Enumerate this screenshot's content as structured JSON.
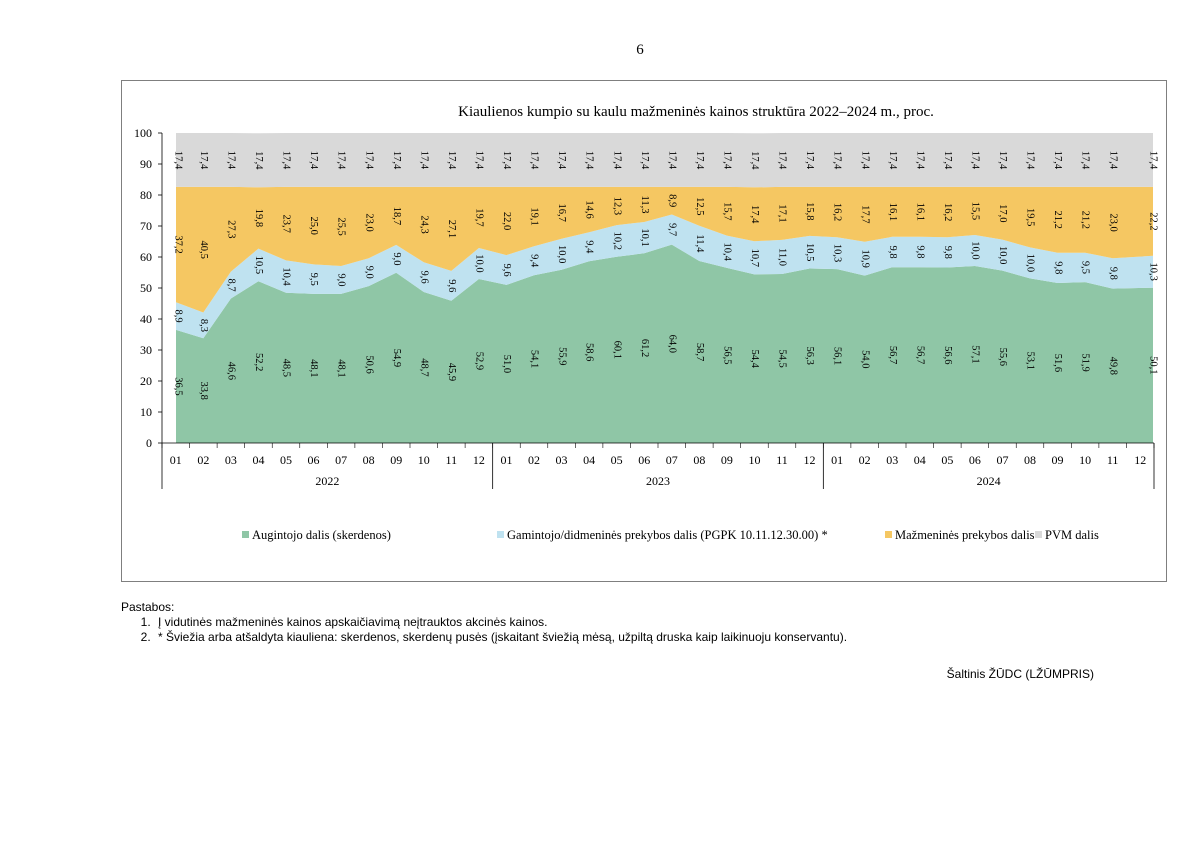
{
  "page_number": "6",
  "notes": {
    "heading": "Pastabos:",
    "items": [
      "Į vidutinės mažmeninės kainos apskaičiavimą neįtrauktos akcinės kainos.",
      "* Šviežia arba atšaldyta kiauliena: skerdenos, skerdenų pusės (įskaitant šviežią mėsą, užpiltą druska kaip laikinuoju konservantu)."
    ]
  },
  "source": "Šaltinis ŽŪDC (LŽŪMPRIS)",
  "chart_data": {
    "type": "area",
    "stacked": true,
    "title": "Kiaulienos kumpio su kaulu mažmeninės kainos struktūra 2022–2024 m., proc.",
    "ylim": [
      0,
      100
    ],
    "yticks": [
      0,
      10,
      20,
      30,
      40,
      50,
      60,
      70,
      80,
      90,
      100
    ],
    "categories": [
      "01",
      "02",
      "03",
      "04",
      "05",
      "06",
      "07",
      "08",
      "09",
      "10",
      "11",
      "12",
      "01",
      "02",
      "03",
      "04",
      "05",
      "06",
      "07",
      "08",
      "09",
      "10",
      "11",
      "12",
      "01",
      "02",
      "03",
      "04",
      "05",
      "06",
      "07",
      "08",
      "09",
      "10",
      "11",
      "12"
    ],
    "years": [
      "2022",
      "2023",
      "2024"
    ],
    "legend_position": "bottom",
    "series": [
      {
        "name": "Augintojo dalis (skerdenos)",
        "color": "#8fc6a6",
        "values": [
          36.5,
          33.8,
          46.6,
          52.2,
          48.5,
          48.1,
          48.1,
          50.6,
          54.9,
          48.7,
          45.9,
          52.9,
          51.0,
          54.1,
          55.9,
          58.6,
          60.1,
          61.2,
          64.0,
          58.7,
          56.5,
          54.4,
          54.5,
          56.3,
          56.1,
          54.0,
          56.7,
          56.7,
          56.6,
          57.1,
          55.6,
          53.1,
          51.6,
          51.9,
          49.8,
          50.1
        ],
        "labels": [
          "36,5",
          "33,8",
          "46,6",
          "52,2",
          "48,5",
          "48,1",
          "48,1",
          "50,6",
          "54,9",
          "48,7",
          "45,9",
          "52,9",
          "51,0",
          "54,1",
          "55,9",
          "58,6",
          "60,1",
          "61,2",
          "64,0",
          "58,7",
          "56,5",
          "54,4",
          "54,5",
          "56,3",
          "56,1",
          "54,0",
          "56,7",
          "56,7",
          "56,6",
          "57,1",
          "55,6",
          "53,1",
          "51,6",
          "51,9",
          "49,8",
          "50,1"
        ]
      },
      {
        "name": "Gamintojo/didmeninės prekybos dalis (PGPK 10.11.12.30.00) *",
        "color": "#bfe2f0",
        "values": [
          8.9,
          8.3,
          8.7,
          10.5,
          10.4,
          9.5,
          9.0,
          9.0,
          9.0,
          9.6,
          9.6,
          10.0,
          9.6,
          9.4,
          10.0,
          9.4,
          10.2,
          10.1,
          9.7,
          11.4,
          10.4,
          10.7,
          11.0,
          10.5,
          10.3,
          10.9,
          9.8,
          9.8,
          9.8,
          10.0,
          10.0,
          10.0,
          9.8,
          9.5,
          9.8,
          10.3
        ],
        "labels": [
          "8,9",
          "8,3",
          "8,7",
          "10,5",
          "10,4",
          "9,5",
          "9,0",
          "9,0",
          "9,0",
          "9,6",
          "9,6",
          "10,0",
          "9,6",
          "9,4",
          "10,0",
          "9,4",
          "10,2",
          "10,1",
          "9,7",
          "11,4",
          "10,4",
          "10,7",
          "11,0",
          "10,5",
          "10,3",
          "10,9",
          "9,8",
          "9,8",
          "9,8",
          "10,0",
          "10,0",
          "10,0",
          "9,8",
          "9,5",
          "9,8",
          "10,3"
        ]
      },
      {
        "name": "Mažmeninės prekybos dalis",
        "color": "#f5c762",
        "values": [
          37.2,
          40.5,
          27.3,
          19.8,
          23.7,
          25.0,
          25.5,
          23.0,
          18.7,
          24.3,
          27.1,
          19.7,
          22.0,
          19.1,
          16.7,
          14.6,
          12.3,
          11.3,
          8.9,
          12.5,
          15.7,
          17.4,
          17.1,
          15.8,
          16.2,
          17.7,
          16.1,
          16.1,
          16.2,
          15.5,
          17.0,
          19.5,
          21.2,
          21.2,
          23.0,
          22.2
        ],
        "labels": [
          "37,2",
          "40,5",
          "27,3",
          "19,8",
          "23,7",
          "25,0",
          "25,5",
          "23,0",
          "18,7",
          "24,3",
          "27,1",
          "19,7",
          "22,0",
          "19,1",
          "16,7",
          "14,6",
          "12,3",
          "11,3",
          "8,9",
          "12,5",
          "15,7",
          "17,4",
          "17,1",
          "15,8",
          "16,2",
          "17,7",
          "16,1",
          "16,1",
          "16,2",
          "15,5",
          "17,0",
          "19,5",
          "21,2",
          "21,2",
          "23,0",
          "22,2"
        ]
      },
      {
        "name": "PVM dalis",
        "color": "#d9d9d9",
        "values": [
          17.4,
          17.4,
          17.4,
          17.4,
          17.4,
          17.4,
          17.4,
          17.4,
          17.4,
          17.4,
          17.4,
          17.4,
          17.4,
          17.4,
          17.4,
          17.4,
          17.4,
          17.4,
          17.4,
          17.4,
          17.4,
          17.4,
          17.4,
          17.4,
          17.4,
          17.4,
          17.4,
          17.4,
          17.4,
          17.4,
          17.4,
          17.4,
          17.4,
          17.4,
          17.4,
          17.4
        ],
        "labels": [
          "17,4",
          "17,4",
          "17,4",
          "17,4",
          "17,4",
          "17,4",
          "17,4",
          "17,4",
          "17,4",
          "17,4",
          "17,4",
          "17,4",
          "17,4",
          "17,4",
          "17,4",
          "17,4",
          "17,4",
          "17,4",
          "17,4",
          "17,4",
          "17,4",
          "17,4",
          "17,4",
          "17,4",
          "17,4",
          "17,4",
          "17,4",
          "17,4",
          "17,4",
          "17,4",
          "17,4",
          "17,4",
          "17,4",
          "17,4",
          "17,4",
          "17,4"
        ]
      }
    ]
  }
}
